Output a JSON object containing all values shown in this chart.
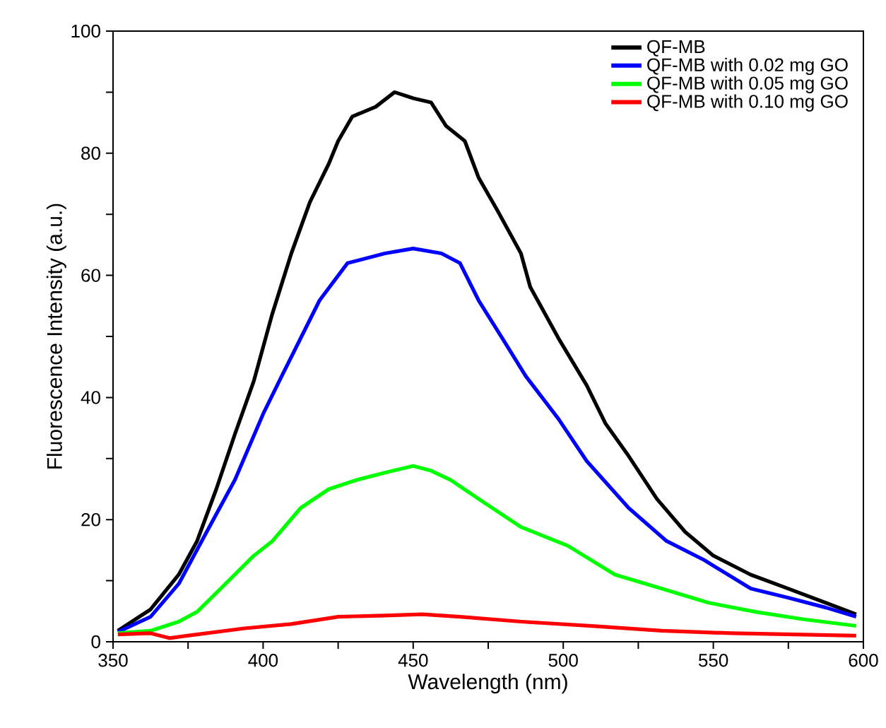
{
  "chart_data": {
    "type": "line",
    "xlabel": "Wavelength (nm)",
    "ylabel": "Fluorescence Intensity (a.u.)",
    "xlim": [
      350,
      600
    ],
    "ylim": [
      0,
      100
    ],
    "xticks": [
      350,
      {
        "value": 375,
        "label": null
      },
      400,
      {
        "value": 425,
        "label": null
      },
      450,
      {
        "value": 475,
        "label": null
      },
      500,
      {
        "value": 525,
        "label": null
      },
      550,
      {
        "value": 575,
        "label": null
      },
      600
    ],
    "yticks": [
      0,
      {
        "value": 10,
        "label": null
      },
      20,
      {
        "value": 30,
        "label": null
      },
      40,
      {
        "value": 50,
        "label": null
      },
      60,
      {
        "value": 70,
        "label": null
      },
      80,
      {
        "value": 90,
        "label": null
      },
      100
    ],
    "legend": "top right",
    "grid": false,
    "line_style": "solid",
    "marker": "none",
    "series": [
      {
        "name": "QF-MB",
        "color": "#000000",
        "x": [
          351.6,
          362.5,
          371.9,
          378,
          384.4,
          390.6,
          396.9,
          403,
          409.4,
          415.6,
          421.9,
          425,
          429.7,
          437.5,
          443.8,
          450,
          456,
          460.9,
          467.2,
          471.8,
          478.1,
          485.9,
          489,
          498.4,
          507.8,
          514,
          521.8,
          531.2,
          540.6,
          550,
          562.4,
          575,
          587.4,
          597.6
        ],
        "values": [
          1.8,
          5.3,
          11,
          16.5,
          25,
          34,
          42.7,
          53.6,
          63.6,
          72,
          78.3,
          82,
          86,
          87.6,
          90,
          89,
          88.3,
          84.5,
          82,
          76,
          70.6,
          63.6,
          58.1,
          49.7,
          42,
          35.8,
          30.4,
          23.4,
          18,
          14.1,
          11,
          8.7,
          6.4,
          4.5
        ]
      },
      {
        "name": "QF-MB with 0.02 mg GO",
        "color": "#0000ff",
        "x": [
          351.6,
          362.5,
          371.9,
          381.2,
          390.6,
          400,
          406.2,
          412.5,
          418.8,
          428.1,
          440.6,
          450,
          459.4,
          465.6,
          471.8,
          479.7,
          487.5,
          498.4,
          507.8,
          521.8,
          534.4,
          546.9,
          562.5,
          575,
          587.5,
          597.6
        ],
        "values": [
          1.6,
          4.1,
          9.5,
          18,
          26.5,
          37.3,
          43.5,
          49.7,
          55.9,
          62,
          63.6,
          64.4,
          63.6,
          62,
          55.9,
          49.7,
          43.5,
          36.5,
          29.6,
          21.9,
          16.5,
          13.4,
          8.7,
          7.2,
          5.6,
          4.1
        ]
      },
      {
        "name": "QF-MB with 0.05 mg GO",
        "color": "#00ff00",
        "x": [
          351.6,
          362.5,
          371.9,
          378,
          387.5,
          396.9,
          403.1,
          412.5,
          421.9,
          431.2,
          440.6,
          450,
          456,
          462.5,
          471.8,
          485.9,
          501.6,
          517.2,
          532.8,
          548.4,
          564,
          579.7,
          597.6
        ],
        "values": [
          1.4,
          1.8,
          3.3,
          4.9,
          9.5,
          14.1,
          16.5,
          21.9,
          25,
          26.5,
          27.7,
          28.8,
          28,
          26.5,
          23.4,
          18.8,
          15.7,
          11,
          8.7,
          6.4,
          4.9,
          3.7,
          2.6
        ]
      },
      {
        "name": "QF-MB with 0.10 mg GO",
        "color": "#ff0000",
        "x": [
          351.6,
          362.5,
          368.8,
          378,
          393.8,
          409.4,
          425,
          440.6,
          453,
          465.6,
          485.9,
          509.4,
          532.8,
          556.2,
          597.6
        ],
        "values": [
          1.2,
          1.4,
          0.6,
          1.2,
          2.2,
          2.9,
          4.1,
          4.3,
          4.5,
          4.1,
          3.3,
          2.6,
          1.8,
          1.4,
          1.0
        ]
      }
    ]
  }
}
